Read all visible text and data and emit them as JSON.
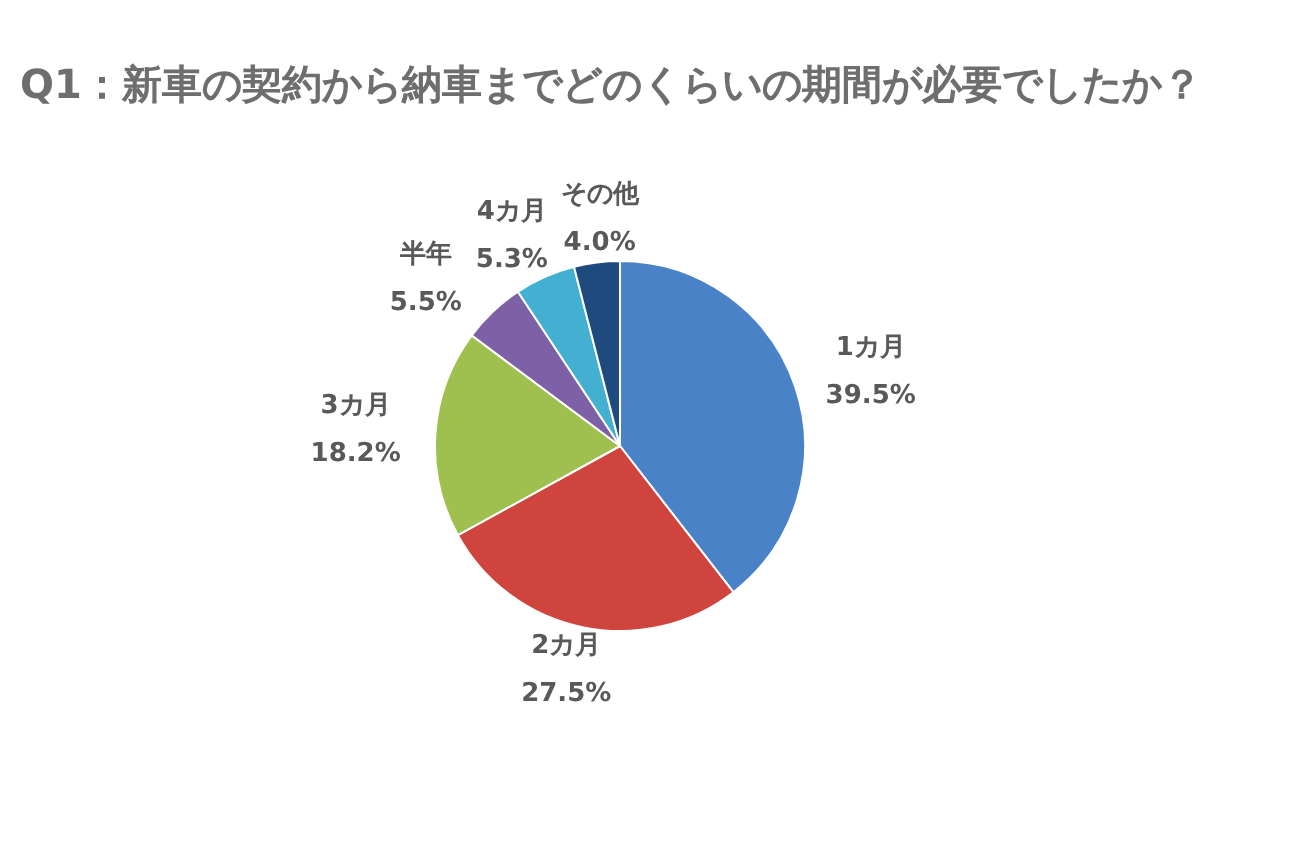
{
  "chart_data": {
    "type": "pie",
    "title": "Q1：新車の契約から納車までどのくらいの期間が必要でしたか？",
    "categories": [
      "1カ月",
      "2カ月",
      "3カ月",
      "半年",
      "4カ月",
      "その他"
    ],
    "values": [
      39.5,
      27.5,
      18.2,
      5.5,
      5.3,
      4.0
    ],
    "colors": [
      "#4a82c8",
      "#d0443e",
      "#9fc04e",
      "#7d60a6",
      "#43b0d2",
      "#1f4a7e"
    ],
    "value_labels": [
      "39.5%",
      "27.5%",
      "18.2%",
      "5.5%",
      "5.3%",
      "4.0%"
    ]
  }
}
